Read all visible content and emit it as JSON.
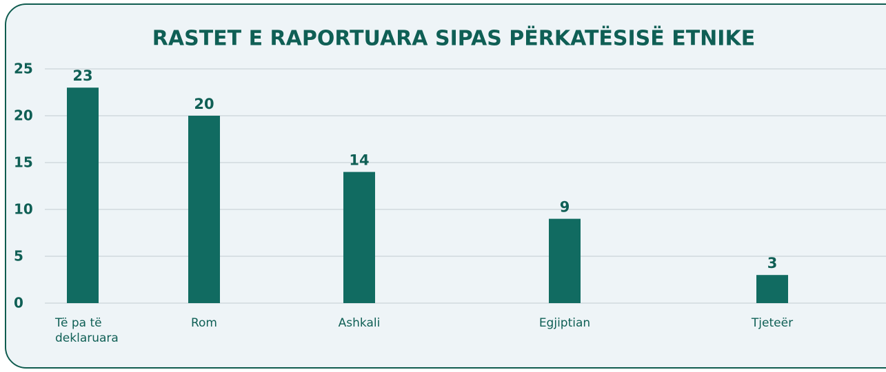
{
  "chart_data": {
    "type": "bar",
    "title": "RASTET E RAPORTUARA SIPAS PËRKATËSISË ETNIKE",
    "categories": [
      "Të pa të deklaruara",
      "Rom",
      "Ashkali",
      "Egjiptian",
      "Tjeteër"
    ],
    "values": [
      23,
      20,
      14,
      9,
      3
    ],
    "color": "#116b61",
    "ylim": [
      0,
      25
    ],
    "yticks": [
      0,
      5,
      10,
      15,
      20,
      25
    ],
    "grid": true
  }
}
